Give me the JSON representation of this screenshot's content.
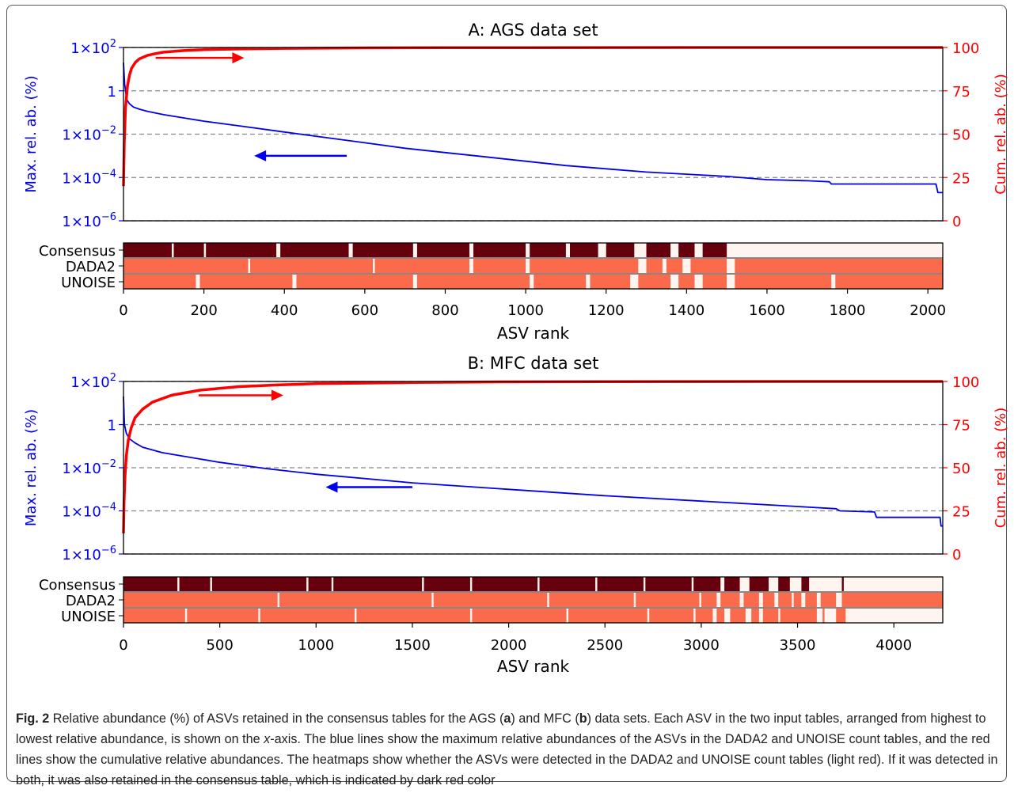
{
  "colors": {
    "blue": "#0000ee",
    "red": "#ff0000",
    "dark_red": "#67000d",
    "light_red": "#fb6a4a",
    "pale": "#fff5f0",
    "grid": "#888888"
  },
  "caption": {
    "label": "Fig. 2",
    "t1": " Relative abundance (%) of ASVs retained in the consensus tables for the AGS (",
    "a": "a",
    "t2": ") and MFC (",
    "b": "b",
    "t3": ") data sets. Each ASV in the two input tables, arranged from highest to lowest relative abundance, is shown on the ",
    "xaxis": "x",
    "t4": "-axis. The blue lines show the maximum relative abundances of the ASVs in the DADA2 and UNOISE count tables, and the red lines show the cumulative relative abundances. The heatmaps show whether the ASVs were detected in the DADA2 and UNOISE count tables (light red). If it was detected in both, it was also retained in the consensus table, which is indicated by dark red color"
  },
  "chart_data": [
    {
      "type": "line",
      "title": "A: AGS data set",
      "xlabel": "ASV rank",
      "ylabel_left": "Max. rel. ab. (%)",
      "ylabel_right": "Cum. rel. ab. (%)",
      "xlim": [
        0,
        2037
      ],
      "xticks": [
        0,
        200,
        400,
        600,
        800,
        1000,
        1200,
        1400,
        1600,
        1800,
        2000
      ],
      "ylim_left_log10": [
        -6,
        2
      ],
      "yticks_left": [
        {
          "exp": 2,
          "label_base": "1×10",
          "label_exp": "2"
        },
        {
          "exp": 0,
          "label_base": "1",
          "label_exp": ""
        },
        {
          "exp": -2,
          "label_base": "1×10",
          "label_exp": "−2"
        },
        {
          "exp": -4,
          "label_base": "1×10",
          "label_exp": "−4"
        },
        {
          "exp": -6,
          "label_base": "1×10",
          "label_exp": "−6"
        }
      ],
      "ylim_right": [
        0,
        100
      ],
      "yticks_right": [
        0,
        25,
        50,
        75,
        100
      ],
      "grid": "horizontal dashed",
      "series": [
        {
          "role": "max rel. ab. (log10 %)",
          "color": "blue",
          "x": [
            0,
            3,
            8,
            15,
            25,
            40,
            60,
            100,
            150,
            200,
            300,
            400,
            500,
            600,
            700,
            800,
            900,
            1000,
            1100,
            1200,
            1300,
            1400,
            1500,
            1600,
            1700,
            1755,
            1760,
            1900,
            2020,
            2025,
            2037
          ],
          "y": [
            1.3,
            0.3,
            -0.4,
            -0.6,
            -0.75,
            -0.85,
            -0.95,
            -1.1,
            -1.25,
            -1.4,
            -1.65,
            -1.9,
            -2.15,
            -2.4,
            -2.65,
            -2.85,
            -3.05,
            -3.25,
            -3.45,
            -3.6,
            -3.75,
            -3.85,
            -3.95,
            -4.1,
            -4.15,
            -4.2,
            -4.3,
            -4.3,
            -4.3,
            -4.7,
            -4.7
          ]
        },
        {
          "role": "cum. rel. ab. (%)",
          "color": "red",
          "x": [
            0,
            2,
            5,
            10,
            15,
            20,
            30,
            40,
            60,
            80,
            100,
            150,
            200,
            300,
            400,
            600,
            800,
            1000,
            1500,
            2037
          ],
          "y": [
            20,
            45,
            65,
            78,
            84,
            88,
            91.5,
            93.5,
            95.5,
            96.5,
            97.3,
            98.2,
            98.7,
            99.2,
            99.5,
            99.75,
            99.87,
            99.93,
            99.98,
            100
          ]
        }
      ],
      "annotations": [
        {
          "arrow": "right",
          "color": "red",
          "x1": 80,
          "x2": 300,
          "y_right": 94
        },
        {
          "arrow": "left",
          "color": "blue",
          "x1": 555,
          "x2": 325,
          "y_log10": -3.0
        }
      ],
      "heatmap": {
        "rows": [
          "Consensus",
          "DADA2",
          "UNOISE"
        ],
        "detected": [
          [
            [
              0,
              120
            ],
            [
              125,
              200
            ],
            [
              205,
              380
            ],
            [
              390,
              560
            ],
            [
              570,
              720
            ],
            [
              730,
              860
            ],
            [
              870,
              1000
            ],
            [
              1010,
              1100
            ],
            [
              1110,
              1180
            ],
            [
              1200,
              1270
            ],
            [
              1300,
              1360
            ],
            [
              1380,
              1420
            ],
            [
              1440,
              1500
            ]
          ],
          [
            [
              0,
              310
            ],
            [
              315,
              620
            ],
            [
              625,
              860
            ],
            [
              870,
              1000
            ],
            [
              1010,
              1280
            ],
            [
              1300,
              1340
            ],
            [
              1350,
              1390
            ],
            [
              1410,
              1500
            ],
            [
              1520,
              2037
            ]
          ],
          [
            [
              0,
              180
            ],
            [
              190,
              420
            ],
            [
              430,
              720
            ],
            [
              730,
              1010
            ],
            [
              1020,
              1150
            ],
            [
              1160,
              1260
            ],
            [
              1280,
              1360
            ],
            [
              1380,
              1420
            ],
            [
              1440,
              1500
            ],
            [
              1520,
              1760
            ],
            [
              1770,
              2037
            ]
          ]
        ]
      }
    },
    {
      "type": "line",
      "title": "B: MFC data set",
      "xlabel": "ASV rank",
      "ylabel_left": "Max. rel. ab. (%)",
      "ylabel_right": "Cum. rel. ab. (%)",
      "xlim": [
        0,
        4254
      ],
      "xticks": [
        0,
        500,
        1000,
        1500,
        2000,
        2500,
        3000,
        3500,
        4000
      ],
      "ylim_left_log10": [
        -6,
        2
      ],
      "yticks_left": [
        {
          "exp": 2,
          "label_base": "1×10",
          "label_exp": "2"
        },
        {
          "exp": 0,
          "label_base": "1",
          "label_exp": ""
        },
        {
          "exp": -2,
          "label_base": "1×10",
          "label_exp": "−2"
        },
        {
          "exp": -4,
          "label_base": "1×10",
          "label_exp": "−4"
        },
        {
          "exp": -6,
          "label_base": "1×10",
          "label_exp": "−6"
        }
      ],
      "ylim_right": [
        0,
        100
      ],
      "yticks_right": [
        0,
        25,
        50,
        75,
        100
      ],
      "grid": "horizontal dashed",
      "series": [
        {
          "role": "max rel. ab. (log10 %)",
          "color": "blue",
          "x": [
            0,
            5,
            15,
            30,
            60,
            100,
            200,
            300,
            500,
            750,
            1000,
            1500,
            2000,
            2500,
            3000,
            3500,
            3700,
            3720,
            3900,
            3910,
            4240,
            4245,
            4254
          ],
          "y": [
            1.3,
            0.0,
            -0.4,
            -0.65,
            -0.85,
            -1.05,
            -1.3,
            -1.45,
            -1.75,
            -2.05,
            -2.3,
            -2.7,
            -3.0,
            -3.3,
            -3.55,
            -3.8,
            -3.9,
            -4.0,
            -4.05,
            -4.3,
            -4.3,
            -4.7,
            -4.7
          ]
        },
        {
          "role": "cum. rel. ab. (%)",
          "color": "red",
          "x": [
            0,
            3,
            8,
            15,
            25,
            40,
            60,
            100,
            150,
            250,
            400,
            600,
            800,
            1000,
            1500,
            2000,
            3000,
            4254
          ],
          "y": [
            12,
            30,
            45,
            57,
            66,
            73,
            79,
            84,
            88,
            92,
            95,
            97,
            98,
            98.7,
            99.4,
            99.75,
            99.95,
            100
          ]
        }
      ],
      "annotations": [
        {
          "arrow": "right",
          "color": "red",
          "x1": 390,
          "x2": 830,
          "y_right": 92
        },
        {
          "arrow": "left",
          "color": "blue",
          "x1": 1500,
          "x2": 1050,
          "y_log10": -2.9
        }
      ],
      "heatmap": {
        "rows": [
          "Consensus",
          "DADA2",
          "UNOISE"
        ],
        "detected": [
          [
            [
              0,
              280
            ],
            [
              290,
              450
            ],
            [
              460,
              950
            ],
            [
              960,
              1080
            ],
            [
              1090,
              1550
            ],
            [
              1560,
              1800
            ],
            [
              1810,
              2150
            ],
            [
              2160,
              2450
            ],
            [
              2460,
              2700
            ],
            [
              2710,
              2950
            ],
            [
              2960,
              3100
            ],
            [
              3120,
              3200
            ],
            [
              3250,
              3350
            ],
            [
              3400,
              3460
            ],
            [
              3520,
              3560
            ],
            [
              3730,
              3740
            ]
          ],
          [
            [
              0,
              800
            ],
            [
              810,
              1600
            ],
            [
              1610,
              2200
            ],
            [
              2210,
              2650
            ],
            [
              2660,
              2990
            ],
            [
              3000,
              3080
            ],
            [
              3100,
              3200
            ],
            [
              3220,
              3300
            ],
            [
              3320,
              3380
            ],
            [
              3400,
              3470
            ],
            [
              3480,
              3520
            ],
            [
              3540,
              3600
            ],
            [
              3620,
              3700
            ],
            [
              3730,
              4254
            ]
          ],
          [
            [
              0,
              320
            ],
            [
              330,
              700
            ],
            [
              710,
              1200
            ],
            [
              1210,
              1800
            ],
            [
              1810,
              2300
            ],
            [
              2310,
              2720
            ],
            [
              2730,
              2960
            ],
            [
              2970,
              3060
            ],
            [
              3080,
              3120
            ],
            [
              3150,
              3230
            ],
            [
              3260,
              3300
            ],
            [
              3320,
              3400
            ],
            [
              3410,
              3600
            ],
            [
              3630,
              3640
            ],
            [
              3700,
              3750
            ]
          ]
        ]
      }
    }
  ]
}
